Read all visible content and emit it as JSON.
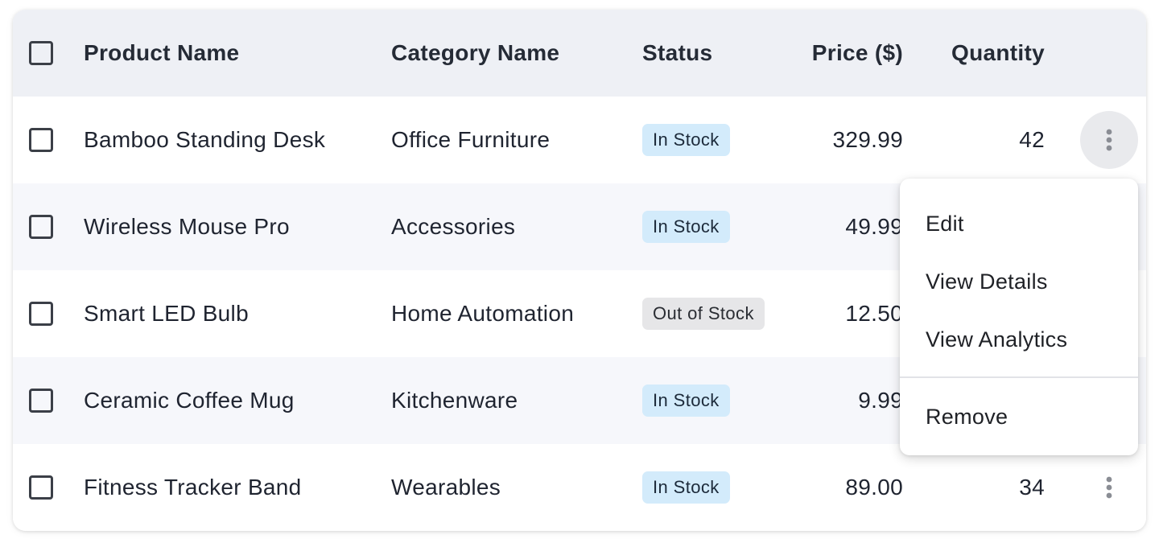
{
  "table": {
    "columns": {
      "product_name": "Product Name",
      "category_name": "Category Name",
      "status": "Status",
      "price": "Price ($)",
      "quantity": "Quantity"
    },
    "rows": [
      {
        "product_name": "Bamboo Standing Desk",
        "category_name": "Office Furniture",
        "status": "In Stock",
        "price": "329.99",
        "quantity": "42",
        "actions_open": true
      },
      {
        "product_name": "Wireless Mouse Pro",
        "category_name": "Accessories",
        "status": "In Stock",
        "price": "49.99",
        "quantity": ""
      },
      {
        "product_name": "Smart LED Bulb",
        "category_name": "Home Automation",
        "status": "Out of Stock",
        "price": "12.50",
        "quantity": ""
      },
      {
        "product_name": "Ceramic Coffee Mug",
        "category_name": "Kitchenware",
        "status": "In Stock",
        "price": "9.99",
        "quantity": ""
      },
      {
        "product_name": "Fitness Tracker Band",
        "category_name": "Wearables",
        "status": "In Stock",
        "price": "89.00",
        "quantity": "34"
      }
    ]
  },
  "action_menu": {
    "items": [
      "Edit",
      "View Details",
      "View Analytics",
      "Remove"
    ]
  },
  "icons": {
    "row_actions": "more-vertical-icon",
    "select": "checkbox-icon"
  },
  "colors": {
    "header_bg": "#eef0f5",
    "alt_row_bg": "#f6f7fb",
    "in_stock_badge": "#d3ebfb",
    "out_of_stock_badge": "#e6e6e8"
  }
}
